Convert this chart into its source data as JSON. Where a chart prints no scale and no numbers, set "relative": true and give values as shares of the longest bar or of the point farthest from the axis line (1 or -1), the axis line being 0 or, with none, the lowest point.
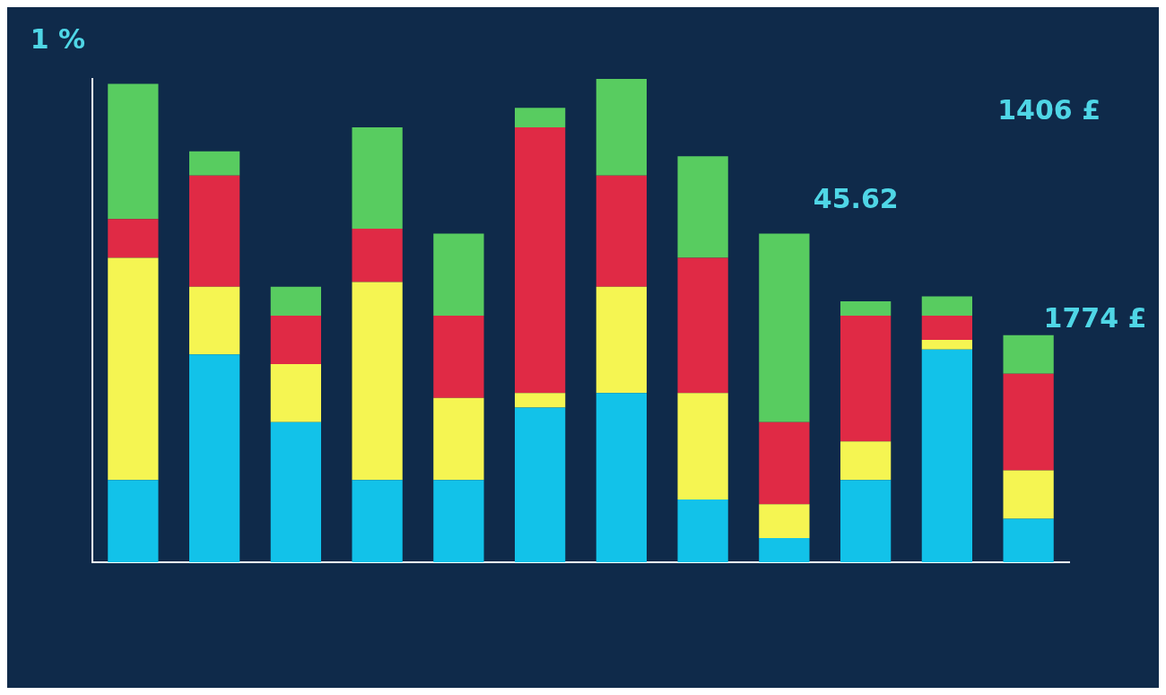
{
  "chart_data": {
    "type": "bar",
    "relative": true,
    "stacked": true,
    "categories": [
      null,
      null,
      null,
      null,
      null,
      null,
      null,
      null,
      null,
      null,
      null,
      null
    ],
    "series": [
      {
        "color": "#12c2e9",
        "values": [
          0.17,
          0.43,
          0.29,
          0.17,
          0.17,
          0.32,
          0.35,
          0.13,
          0.05,
          0.17,
          0.44,
          0.09
        ]
      },
      {
        "color": "#f5f552",
        "values": [
          0.46,
          0.14,
          0.12,
          0.41,
          0.17,
          0.03,
          0.22,
          0.22,
          0.07,
          0.08,
          0.02,
          0.1
        ]
      },
      {
        "color": "#e02a45",
        "values": [
          0.08,
          0.23,
          0.1,
          0.11,
          0.17,
          0.55,
          0.23,
          0.28,
          0.17,
          0.26,
          0.05,
          0.2
        ]
      },
      {
        "color": "#58cc60",
        "values": [
          0.28,
          0.05,
          0.06,
          0.21,
          0.17,
          0.04,
          0.2,
          0.21,
          0.39,
          0.03,
          0.04,
          0.08
        ]
      }
    ],
    "annotations": [
      "1 %",
      "1406 £",
      "1774 £",
      "45.62"
    ],
    "grid": false,
    "legend": false
  }
}
